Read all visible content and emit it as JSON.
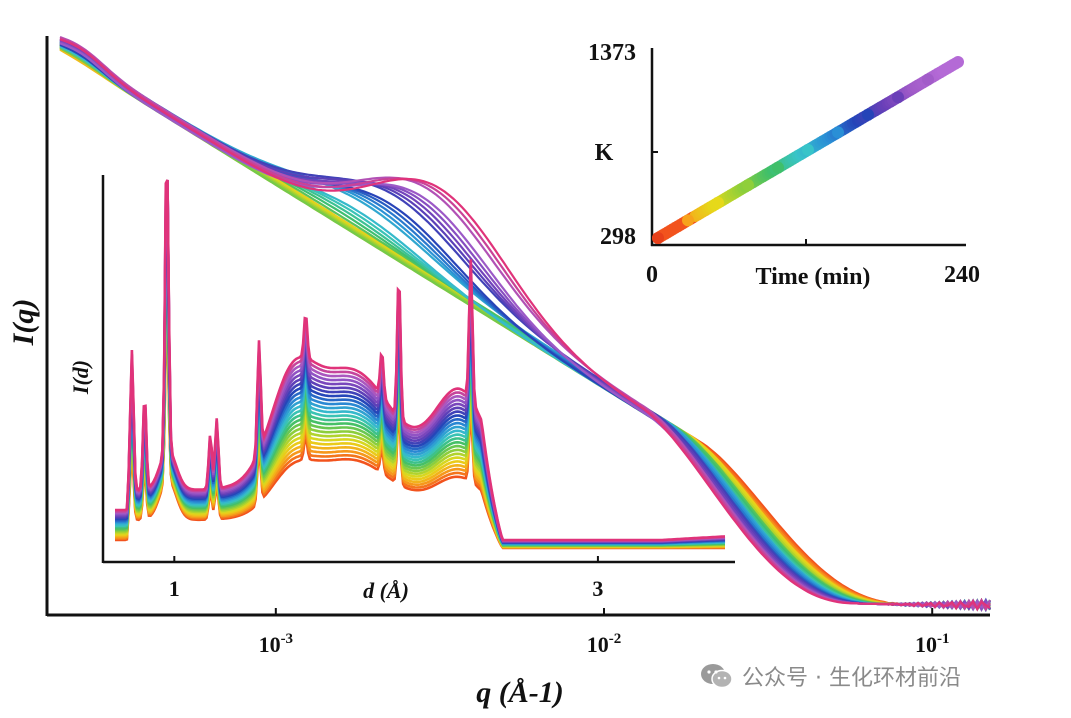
{
  "chart_data": [
    {
      "id": "main",
      "type": "line",
      "xlabel": "q (Å-1)",
      "ylabel": "I(q)",
      "xscale": "log",
      "xlim": [
        0.00022,
        0.15
      ],
      "x_ticks": [
        {
          "value": 0.001,
          "base": "10",
          "exp": "-3"
        },
        {
          "value": 0.01,
          "base": "10",
          "exp": "-2"
        },
        {
          "value": 0.1,
          "base": "10",
          "exp": "-1"
        }
      ],
      "curves": 28,
      "color_sequence": [
        "#f2531d",
        "#f7a21b",
        "#e6d91a",
        "#8fcf3a",
        "#3fbf6a",
        "#38c4c9",
        "#2a8fd6",
        "#2544b8",
        "#6a3fb8",
        "#a25cc9",
        "#e0337a"
      ],
      "grid": false
    },
    {
      "id": "inset-diffraction",
      "type": "line",
      "xlabel": "d (Å)",
      "ylabel": "I(d)",
      "xlim": [
        0.72,
        3.6
      ],
      "x_ticks": [
        1,
        3
      ],
      "curves": 24,
      "grid": false
    },
    {
      "id": "inset-temperature",
      "type": "scatter",
      "xlabel": "Time (min)",
      "ylabel": "K",
      "xlim": [
        0,
        240
      ],
      "ylim": [
        298,
        1373
      ],
      "x_ticks": [
        0,
        240
      ],
      "y_ticks": [
        298,
        1373
      ],
      "x": [
        0,
        24,
        48,
        72,
        96,
        120,
        144,
        168,
        192,
        216,
        240
      ],
      "y": [
        298,
        406,
        513,
        621,
        728,
        836,
        943,
        1051,
        1158,
        1266,
        1373
      ]
    }
  ],
  "watermark": {
    "text": "公众号 · 生化环材前沿"
  }
}
